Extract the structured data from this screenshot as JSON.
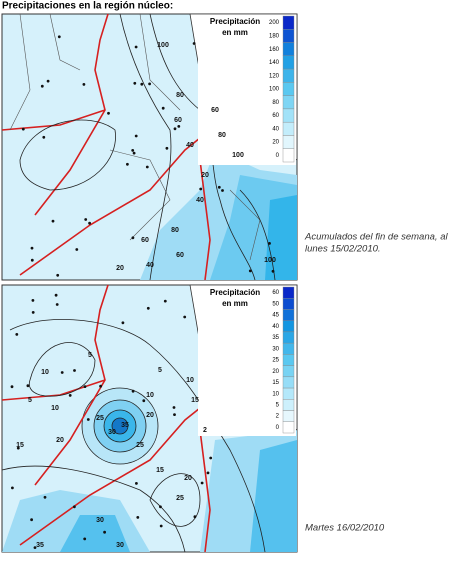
{
  "header": {
    "title": "Precipitaciones en la región núcleo:"
  },
  "maps": [
    {
      "legend": {
        "title": [
          "Precipitación",
          "en mm"
        ],
        "levels": [
          200,
          180,
          160,
          140,
          120,
          100,
          80,
          60,
          40,
          20,
          0
        ]
      },
      "contour_labels": [
        100,
        80,
        60,
        40,
        20,
        60,
        80,
        100,
        40,
        60,
        80,
        100,
        20,
        40,
        60
      ],
      "caption": "Acumulados del fin de semana, al lunes 15/02/2010."
    },
    {
      "legend": {
        "title": [
          "Precipitación",
          "en mm"
        ],
        "levels": [
          60,
          50,
          45,
          40,
          35,
          30,
          25,
          20,
          15,
          10,
          5,
          2,
          0
        ]
      },
      "contour_labels": [
        10,
        5,
        5,
        10,
        15,
        20,
        25,
        30,
        35,
        15,
        10,
        20,
        25,
        30,
        5,
        10,
        15,
        20,
        25,
        30,
        35,
        2
      ],
      "caption": "Martes 16/02/2010"
    }
  ]
}
